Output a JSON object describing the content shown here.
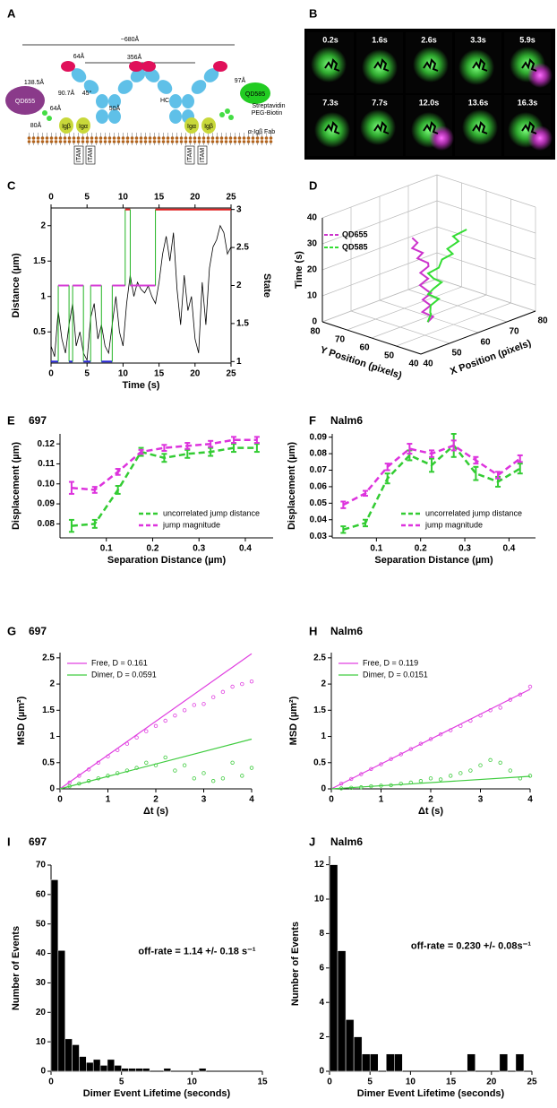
{
  "diagram": {
    "panel": "A",
    "labels": [
      "~680Å",
      "356Å",
      "64Å",
      "138.5Å",
      "QD655",
      "64Å",
      "80Å",
      "90.7Å",
      "45°",
      "50Å",
      "HC",
      "Igβ",
      "Igα",
      "Igα",
      "Igβ",
      "ITAM",
      "ITAM",
      "ITAM",
      "ITAM",
      "97Å",
      "QD585",
      "Streptavidin",
      "PEG-Biotin",
      "α-Igβ Fab"
    ]
  },
  "microscopy": {
    "panel": "B",
    "times": [
      "0.2s",
      "1.6s",
      "2.6s",
      "3.3s",
      "5.9s",
      "7.3s",
      "7.7s",
      "12.0s",
      "13.6s",
      "16.3s"
    ]
  },
  "chart_data": [
    {
      "type": "line",
      "panel": "C",
      "xlabel": "Time (s)",
      "ylabel": "Distance (µm)",
      "y2label": "State",
      "xlim": [
        0,
        25
      ],
      "xticks": [
        0,
        5,
        10,
        15,
        20,
        25
      ],
      "top_axis": true,
      "frame": true,
      "ylim": [
        0.06,
        2.25
      ],
      "yticks": [
        0.5,
        1,
        1.5,
        2
      ],
      "y2lim": [
        0.98,
        3.02
      ],
      "y2ticks": [
        1,
        1.5,
        2,
        2.5,
        3
      ],
      "series": [
        {
          "color": "#000000",
          "x": [
            0,
            0.5,
            1,
            1.5,
            2,
            2.5,
            3,
            3.5,
            4,
            4.5,
            5,
            5.5,
            6,
            6.5,
            7,
            7.5,
            8,
            8.5,
            9,
            9.5,
            10,
            10.5,
            11,
            11.5,
            12,
            12.5,
            13,
            13.5,
            14,
            14.5,
            15,
            15.5,
            16,
            16.5,
            17,
            17.5,
            18,
            18.5,
            19,
            19.5,
            20,
            20.5,
            21,
            21.5,
            22,
            22.5,
            23,
            23.5,
            24,
            24.5,
            25
          ],
          "values": [
            0.3,
            0.15,
            0.8,
            0.4,
            0.2,
            0.6,
            0.9,
            0.3,
            0.5,
            0.2,
            0.1,
            0.7,
            0.9,
            0.4,
            0.6,
            0.3,
            0.2,
            0.6,
            1.0,
            0.5,
            0.3,
            0.9,
            1.3,
            1.0,
            1.2,
            1.1,
            1.05,
            1.15,
            1.0,
            0.9,
            1.2,
            1.6,
            1.85,
            1.5,
            1.9,
            1.1,
            0.6,
            1.3,
            0.8,
            1.0,
            0.4,
            0.2,
            1.2,
            0.6,
            1.4,
            1.7,
            1.8,
            2.0,
            1.9,
            1.6,
            1.7
          ]
        },
        {
          "color": "#22b422",
          "axis": "y2",
          "step": true,
          "x": [
            0,
            1,
            2.5,
            3,
            4.5,
            5.5,
            7,
            8.5,
            10.3,
            11,
            14.5
          ],
          "values": [
            1,
            2,
            1,
            2,
            1,
            2,
            1,
            2,
            3,
            2,
            3
          ],
          "segment_colors": [
            "#2b2bd6",
            "#d63cd6",
            "#2b2bd6",
            "#d63cd6",
            "#2b2bd6",
            "#d63cd6",
            "#2b2bd6",
            "#d63cd6",
            "#e02020",
            "#d63cd6",
            "#e02020"
          ]
        }
      ]
    },
    {
      "type": "line3d",
      "panel": "D",
      "xlabel": "X Position (pixels)",
      "ylabel": "Y Position (pixels)",
      "zlabel": "Time (s)",
      "xlim": [
        40,
        80
      ],
      "xticks": [
        40,
        50,
        60,
        70,
        80
      ],
      "ylim": [
        40,
        80
      ],
      "yticks": [
        40,
        50,
        60,
        70,
        80
      ],
      "zlim": [
        0,
        40
      ],
      "zticks": [
        0,
        10,
        20,
        30,
        40
      ],
      "legend": "upper left",
      "series": [
        {
          "name": "QD655",
          "color": "#cc33cc",
          "x": [
            57,
            58,
            56,
            58,
            57,
            59,
            57,
            56,
            58,
            57,
            59,
            58,
            56,
            57,
            55,
            56,
            55
          ],
          "y": [
            57,
            56,
            58,
            57,
            59,
            58,
            57,
            59,
            58,
            60,
            59,
            58,
            60,
            59,
            61,
            60,
            61
          ],
          "z": [
            0,
            2,
            4,
            6,
            8,
            10,
            12,
            14,
            16,
            18,
            20,
            22,
            24,
            26,
            28,
            30,
            32
          ]
        },
        {
          "name": "QD585",
          "color": "#33dd33",
          "x": [
            57,
            59,
            57,
            58,
            60,
            58,
            59,
            61,
            59,
            58,
            60,
            62,
            64,
            63,
            66,
            65,
            68
          ],
          "y": [
            57,
            58,
            56,
            57,
            56,
            58,
            57,
            56,
            57,
            58,
            56,
            57,
            55,
            56,
            55,
            56,
            54
          ],
          "z": [
            0,
            2,
            4,
            6,
            8,
            10,
            12,
            14,
            16,
            18,
            20,
            22,
            24,
            26,
            28,
            30,
            32
          ]
        }
      ]
    },
    {
      "type": "line",
      "panel": "E",
      "title": "697",
      "xlabel": "Separation Distance (µm)",
      "ylabel": "Displacement (µm)",
      "x": [
        0.025,
        0.075,
        0.125,
        0.175,
        0.225,
        0.275,
        0.325,
        0.375,
        0.425
      ],
      "xlim": [
        0,
        0.46
      ],
      "xticks": [
        0.1,
        0.2,
        0.3,
        0.4
      ],
      "ylim": [
        0.073,
        0.125
      ],
      "yticks": [
        0.08,
        0.09,
        {
          "value": 0.1,
          "label": "0.10"
        },
        0.11,
        0.12
      ],
      "legend": "lower right",
      "series": [
        {
          "name": "uncorrelated jump distance",
          "color": "#33cc33",
          "dashed": true,
          "values": [
            0.079,
            0.08,
            0.097,
            0.116,
            0.113,
            0.115,
            0.116,
            0.118,
            0.118
          ],
          "errors": [
            0.003,
            0.002,
            0.002,
            0.002,
            0.002,
            0.002,
            0.002,
            0.002,
            0.002
          ]
        },
        {
          "name": "jump magnitude",
          "color": "#dd33dd",
          "dashed": true,
          "values": [
            0.098,
            0.097,
            0.106,
            0.116,
            0.118,
            0.119,
            0.12,
            0.122,
            0.122
          ],
          "errors": [
            0.003,
            0.0015,
            0.0015,
            0.001,
            0.0015,
            0.0015,
            0.0015,
            0.0015,
            0.0015
          ]
        }
      ]
    },
    {
      "type": "line",
      "panel": "F",
      "title": "Nalm6",
      "xlabel": "Separation Distance (µm)",
      "ylabel": "Displacement (µm)",
      "x": [
        0.025,
        0.075,
        0.125,
        0.175,
        0.225,
        0.275,
        0.325,
        0.375,
        0.425
      ],
      "xlim": [
        0,
        0.46
      ],
      "xticks": [
        0.1,
        0.2,
        0.3,
        0.4
      ],
      "ylim": [
        0.029,
        0.092
      ],
      "yticks": [
        0.03,
        0.04,
        0.05,
        0.06,
        0.07,
        0.08,
        0.09
      ],
      "legend": "lower right",
      "series": [
        {
          "name": "uncorrelated jump distance",
          "color": "#33cc33",
          "dashed": true,
          "values": [
            0.034,
            0.038,
            0.065,
            0.079,
            0.073,
            0.085,
            0.068,
            0.063,
            0.071
          ],
          "errors": [
            0.002,
            0.002,
            0.003,
            0.003,
            0.004,
            0.007,
            0.004,
            0.003,
            0.003
          ]
        },
        {
          "name": "jump magnitude",
          "color": "#dd33dd",
          "dashed": true,
          "values": [
            0.049,
            0.056,
            0.072,
            0.083,
            0.08,
            0.085,
            0.076,
            0.067,
            0.077
          ],
          "errors": [
            0.002,
            0.0015,
            0.002,
            0.003,
            0.002,
            0.003,
            0.002,
            0.002,
            0.002
          ]
        }
      ]
    },
    {
      "type": "scatter",
      "panel": "G",
      "title": "697",
      "xlabel": "Δt (s)",
      "ylabel": "MSD (µm²)",
      "xlim": [
        0,
        4
      ],
      "xticks": [
        0,
        1,
        2,
        3,
        4
      ],
      "ylim": [
        0,
        2.6
      ],
      "yticks": [
        0,
        0.5,
        1,
        1.5,
        2,
        2.5
      ],
      "legend": "upper left",
      "series": [
        {
          "name": "Free, D = 0.161",
          "color": "#e040e0",
          "style": "line",
          "x": [
            0,
            4
          ],
          "values": [
            0,
            2.58
          ]
        },
        {
          "name": "Dimer, D = 0.0591",
          "color": "#40cc40",
          "style": "line",
          "x": [
            0,
            4
          ],
          "values": [
            0,
            0.95
          ]
        },
        {
          "color": "#e040e0",
          "style": "markers",
          "x": [
            0.2,
            0.4,
            0.6,
            0.8,
            1,
            1.2,
            1.4,
            1.6,
            1.8,
            2,
            2.2,
            2.4,
            2.6,
            2.8,
            3,
            3.2,
            3.4,
            3.6,
            3.8,
            4
          ],
          "values": [
            0.12,
            0.25,
            0.37,
            0.5,
            0.62,
            0.74,
            0.86,
            0.98,
            1.1,
            1.2,
            1.3,
            1.4,
            1.5,
            1.6,
            1.62,
            1.75,
            1.85,
            1.95,
            2.0,
            2.05
          ]
        },
        {
          "color": "#40cc40",
          "style": "markers",
          "x": [
            0.2,
            0.4,
            0.6,
            0.8,
            1,
            1.2,
            1.4,
            1.6,
            1.8,
            2,
            2.2,
            2.4,
            2.6,
            2.8,
            3,
            3.2,
            3.4,
            3.6,
            3.8,
            4
          ],
          "values": [
            0.05,
            0.1,
            0.15,
            0.2,
            0.25,
            0.3,
            0.35,
            0.4,
            0.5,
            0.45,
            0.6,
            0.35,
            0.45,
            0.2,
            0.3,
            0.15,
            0.2,
            0.5,
            0.25,
            0.4
          ]
        }
      ]
    },
    {
      "type": "scatter",
      "panel": "H",
      "title": "Nalm6",
      "xlabel": "Δt (s)",
      "ylabel": "MSD (µm²)",
      "xlim": [
        0,
        4
      ],
      "xticks": [
        0,
        1,
        2,
        3,
        4
      ],
      "ylim": [
        0,
        2.6
      ],
      "yticks": [
        0,
        0.5,
        1,
        1.5,
        2,
        2.5
      ],
      "legend": "upper left",
      "series": [
        {
          "name": "Free, D = 0.119",
          "color": "#e040e0",
          "style": "line",
          "x": [
            0,
            4
          ],
          "values": [
            0,
            1.9
          ]
        },
        {
          "name": "Dimer, D = 0.0151",
          "color": "#40cc40",
          "style": "line",
          "x": [
            0,
            4
          ],
          "values": [
            0,
            0.24
          ]
        },
        {
          "color": "#e040e0",
          "style": "markers",
          "x": [
            0.2,
            0.4,
            0.6,
            0.8,
            1,
            1.2,
            1.4,
            1.6,
            1.8,
            2,
            2.2,
            2.4,
            2.6,
            2.8,
            3,
            3.2,
            3.4,
            3.6,
            3.8,
            4
          ],
          "values": [
            0.1,
            0.19,
            0.28,
            0.38,
            0.47,
            0.57,
            0.66,
            0.76,
            0.86,
            0.95,
            1.04,
            1.12,
            1.2,
            1.3,
            1.4,
            1.5,
            1.55,
            1.7,
            1.8,
            1.95
          ]
        },
        {
          "color": "#40cc40",
          "style": "markers",
          "x": [
            0.2,
            0.4,
            0.6,
            0.8,
            1,
            1.2,
            1.4,
            1.6,
            1.8,
            2,
            2.2,
            2.4,
            2.6,
            2.8,
            3,
            3.2,
            3.4,
            3.6,
            3.8,
            4
          ],
          "values": [
            0.01,
            0.02,
            0.03,
            0.05,
            0.06,
            0.07,
            0.1,
            0.12,
            0.15,
            0.2,
            0.18,
            0.25,
            0.3,
            0.35,
            0.45,
            0.55,
            0.5,
            0.35,
            0.2,
            0.25
          ]
        }
      ]
    },
    {
      "type": "histogram",
      "panel": "I",
      "title": "697",
      "xlabel": "Dimer Event Lifetime (seconds)",
      "ylabel": "Number of Events",
      "color": "#000000",
      "bins": [
        0,
        0.5,
        1,
        1.5,
        2,
        2.5,
        3,
        3.5,
        4,
        4.5,
        5,
        5.5,
        6,
        6.5,
        7,
        7.5,
        8,
        8.5,
        9,
        9.5,
        10,
        10.5,
        11
      ],
      "counts": [
        65,
        41,
        11,
        9,
        5,
        3,
        4,
        2,
        4,
        2,
        1,
        1,
        1,
        1,
        0,
        0,
        1,
        0,
        0,
        0,
        0,
        1
      ],
      "xlim": [
        0,
        15
      ],
      "xticks": [
        0,
        5,
        10,
        15
      ],
      "ylim": [
        0,
        70
      ],
      "yticks": [
        0,
        10,
        20,
        30,
        40,
        50,
        60,
        70
      ],
      "annotation": "off-rate = 1.14 +/- 0.18 s⁻¹"
    },
    {
      "type": "histogram",
      "panel": "J",
      "title": "Nalm6",
      "xlabel": "Dimer Event Lifetime (seconds)",
      "ylabel": "Number of Events",
      "color": "#000000",
      "bins": [
        0,
        1,
        2,
        3,
        4,
        5,
        6,
        7,
        8,
        9,
        10,
        11,
        12,
        13,
        14,
        15,
        16,
        17,
        18,
        19,
        20,
        21,
        22,
        23,
        24
      ],
      "counts": [
        12,
        7,
        3,
        2,
        1,
        1,
        0,
        1,
        1,
        0,
        0,
        0,
        0,
        0,
        0,
        0,
        0,
        1,
        0,
        0,
        0,
        1,
        0,
        1
      ],
      "xlim": [
        0,
        25
      ],
      "xticks": [
        0,
        5,
        10,
        15,
        20,
        25
      ],
      "ylim": [
        0,
        12.5
      ],
      "yticks": [
        0,
        2,
        4,
        6,
        8,
        10,
        12
      ],
      "annotation": "off-rate = 0.230 +/- 0.08s⁻¹"
    }
  ]
}
